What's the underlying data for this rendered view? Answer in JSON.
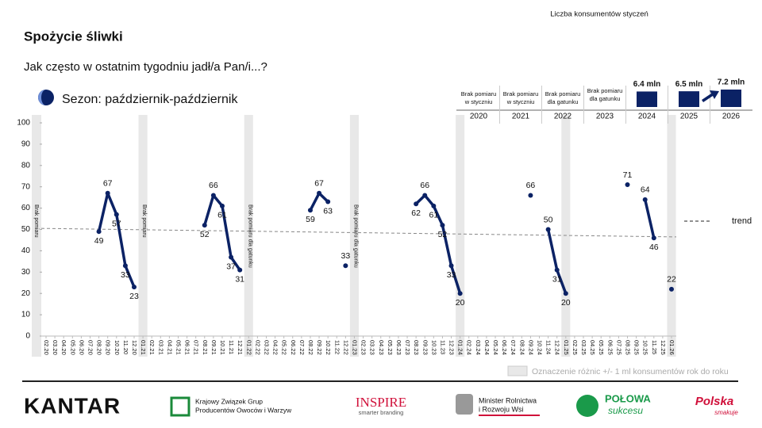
{
  "header": {
    "title": "Spożycie śliwki",
    "subtitle": "Jak często w ostatnim tygodniu jadł/a Pan/i...?",
    "season": "Sezon: październik-październik"
  },
  "chart_data": [
    {
      "type": "line",
      "categories": [
        "02.20",
        "03.20",
        "04.20",
        "05.20",
        "06.20",
        "07.20",
        "08.20",
        "09.20",
        "10.20",
        "11.20",
        "12.20",
        "01.21",
        "02.21",
        "03.21",
        "04.21",
        "05.21",
        "06.21",
        "07.21",
        "08.21",
        "09.21",
        "10.21",
        "11.21",
        "12.21",
        "01.22",
        "02.22",
        "03.22",
        "04.22",
        "05.22",
        "06.22",
        "07.22",
        "08.22",
        "09.22",
        "10.22",
        "11.22",
        "12.22",
        "01.23",
        "02.23",
        "03.23",
        "04.23",
        "05.23",
        "06.23",
        "07.23",
        "08.23",
        "09.23",
        "10.23",
        "11.23",
        "12.23",
        "01.24",
        "02.24",
        "03.24",
        "04.24",
        "05.24",
        "06.24",
        "07.24",
        "08.24",
        "09.24",
        "10.24",
        "11.24",
        "12.24",
        "01.25",
        "02.25",
        "03.25",
        "04.25",
        "05.25",
        "06.25",
        "07.25",
        "08.25",
        "09.25",
        "10.25",
        "11.25",
        "12.25",
        "01.26"
      ],
      "series": [
        {
          "color": "#0b2265",
          "values": [
            null,
            null,
            null,
            null,
            null,
            null,
            49,
            67,
            57,
            33,
            23,
            null,
            null,
            null,
            null,
            null,
            null,
            null,
            52,
            66,
            61,
            37,
            31,
            null,
            null,
            null,
            null,
            null,
            null,
            null,
            59,
            67,
            63,
            null,
            33,
            null,
            null,
            null,
            null,
            null,
            null,
            null,
            62,
            66,
            61,
            52,
            33,
            20,
            null,
            null,
            null,
            null,
            null,
            null,
            null,
            66,
            null,
            50,
            31,
            20,
            null,
            null,
            null,
            null,
            null,
            null,
            71,
            null,
            64,
            46,
            null,
            22
          ]
        }
      ],
      "ylim": [
        0,
        100
      ],
      "yticks": [
        0,
        10,
        20,
        30,
        40,
        50,
        60,
        70,
        80,
        90,
        100
      ],
      "grid": false,
      "trend": {
        "label": "trend",
        "start": 50.5,
        "end": 46.5,
        "color": "#888888"
      },
      "bands": [
        "01.21",
        "01.22",
        "01.23",
        "01.24",
        "01.25",
        "01.26"
      ],
      "band_notes": [
        {
          "text": "Brak pomiaru"
        },
        {
          "category": "01.21",
          "text": "Brak pomiaru"
        },
        {
          "category": "01.22",
          "text": "Brak pomiaru dla gatunku"
        },
        {
          "category": "01.23",
          "text": "Brak pomiaru dla gatunku"
        }
      ],
      "band_legend": "Oznaczenie różnic +/- 1 ml konsumentów rok do roku"
    },
    {
      "type": "bar",
      "title": "Liczba konsumentów styczeń",
      "categories": [
        "2020",
        "2021",
        "2022",
        "2023",
        "2024",
        "2025",
        "2026"
      ],
      "values": [
        null,
        null,
        null,
        null,
        6.4,
        6.5,
        7.2
      ],
      "value_labels": [
        null,
        null,
        null,
        null,
        "6.4 mln",
        "6.5 mln",
        "7.2 mln"
      ],
      "notes": [
        [
          "Brak pomiaru",
          "w styczniu"
        ],
        [
          "Brak pomiaru",
          "w styczniu"
        ],
        [
          "Brak pomiaru",
          "dla gatunku"
        ],
        [
          "Brak pomiaru",
          "dla gatunku"
        ],
        null,
        null,
        null
      ],
      "ylim": [
        0,
        7.2
      ],
      "color": "#0b2265"
    }
  ],
  "footer": {
    "logos": [
      "KANTAR",
      [
        "Krajowy Związek Grup",
        "Producentów Owoców i Warzyw"
      ],
      [
        "INSPIRE",
        "smarter branding"
      ],
      [
        "Minister Rolnictwa",
        "i Rozwoju Wsi"
      ],
      [
        "POŁOWA",
        "sukcesu"
      ],
      [
        "Polska",
        "smakuje"
      ]
    ]
  }
}
